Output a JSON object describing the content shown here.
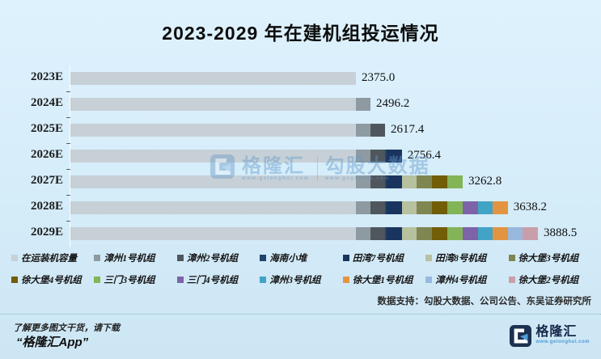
{
  "title": "2023-2029 年在建机组投运情况",
  "chart_data": {
    "type": "bar",
    "orientation": "horizontal",
    "stacked": true,
    "title": "2023-2029 年在建机组投运情况",
    "categories": [
      "2023E",
      "2024E",
      "2025E",
      "2026E",
      "2027E",
      "2028E",
      "2029E"
    ],
    "totals": [
      2375.0,
      2496.2,
      2617.4,
      2756.4,
      3262.8,
      3638.2,
      3888.5
    ],
    "total_labels": [
      "2375.0",
      "2496.2",
      "2617.4",
      "2756.4",
      "3262.8",
      "3638.2",
      "3888.5"
    ],
    "xlim": [
      0,
      3888.5
    ],
    "legend_position": "bottom",
    "grid": false,
    "series": [
      {
        "name": "在运装机容量",
        "color": "#c6d0d6",
        "values": [
          2375.0,
          2375.0,
          2375.0,
          2375.0,
          2375.0,
          2375.0,
          2375.0
        ]
      },
      {
        "name": "漳州1号机组",
        "color": "#8e9aa2",
        "values": [
          0,
          121.2,
          121.2,
          121.2,
          121.2,
          121.2,
          121.2
        ]
      },
      {
        "name": "漳州2号机组",
        "color": "#4f575d",
        "values": [
          0,
          0,
          121.2,
          121.2,
          121.2,
          121.2,
          121.2
        ]
      },
      {
        "name": "海南小堆",
        "color": "#20446f",
        "values": [
          0,
          0,
          0,
          12.5,
          12.5,
          12.5,
          12.5
        ]
      },
      {
        "name": "田湾7号机组",
        "color": "#19355f",
        "values": [
          0,
          0,
          0,
          126.5,
          126.5,
          126.5,
          126.5
        ]
      },
      {
        "name": "田湾8号机组",
        "color": "#b7c09f",
        "values": [
          0,
          0,
          0,
          0,
          126.6,
          126.6,
          126.6
        ]
      },
      {
        "name": "徐大堡3号机组",
        "color": "#7f8651",
        "values": [
          0,
          0,
          0,
          0,
          126.6,
          126.6,
          126.6
        ]
      },
      {
        "name": "徐大堡4号机组",
        "color": "#715e06",
        "values": [
          0,
          0,
          0,
          0,
          126.6,
          126.6,
          126.6
        ]
      },
      {
        "name": "三门3号机组",
        "color": "#83b457",
        "values": [
          0,
          0,
          0,
          0,
          126.6,
          126.6,
          126.6
        ]
      },
      {
        "name": "三门4号机组",
        "color": "#7d63a8",
        "values": [
          0,
          0,
          0,
          0,
          0,
          125.1,
          125.1
        ]
      },
      {
        "name": "漳州3号机组",
        "color": "#41a4c6",
        "values": [
          0,
          0,
          0,
          0,
          0,
          125.1,
          125.1
        ]
      },
      {
        "name": "徐大堡1号机组",
        "color": "#e39440",
        "values": [
          0,
          0,
          0,
          0,
          0,
          125.2,
          125.2
        ]
      },
      {
        "name": "漳州4号机组",
        "color": "#98b8de",
        "values": [
          0,
          0,
          0,
          0,
          0,
          0,
          125.1
        ]
      },
      {
        "name": "徐大堡2号机组",
        "color": "#c99eab",
        "values": [
          0,
          0,
          0,
          0,
          0,
          0,
          125.2
        ]
      }
    ]
  },
  "watermark": {
    "brand": "格隆汇",
    "brand_url": "www.gelonghui.com",
    "data_brand": "勾股大数据",
    "data_url": "www.gogudata.com"
  },
  "footer": {
    "credit": "数据支持：勾股大数据、公司公告、东吴证券研究所",
    "promo_line1": "了解更多图文干货，请下载",
    "promo_line2": "“格隆汇App”"
  },
  "brand_logo": {
    "name": "格隆汇",
    "url": "www.gelonghui.com",
    "color": "#1c3150",
    "accent": "#4f9bd8"
  }
}
